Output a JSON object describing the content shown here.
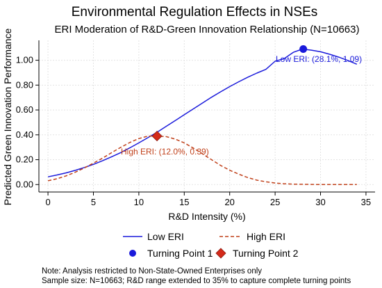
{
  "chart_data": {
    "type": "line",
    "title": "Environmental Regulation Effects in NSEs",
    "subtitle": "ERI Moderation of R&D-Green Innovation Relationship (N=10663)",
    "xlabel": "R&D Intensity (%)",
    "ylabel": "Predicted Green Innovation Performance",
    "xlim": [
      -1,
      36
    ],
    "ylim": [
      -0.06,
      1.16
    ],
    "xticks": [
      "0",
      "5",
      "10",
      "15",
      "20",
      "25",
      "30",
      "35"
    ],
    "yticks": [
      "0.00",
      "0.20",
      "0.40",
      "0.60",
      "0.80",
      "1.00"
    ],
    "grid": true,
    "legend_position": "bottom",
    "series": [
      {
        "name": "Low ERI",
        "style": "solid",
        "color": "#1a1adb",
        "x": [
          0,
          1,
          2,
          3,
          4,
          5,
          6,
          7,
          8,
          9,
          10,
          11,
          12,
          13,
          14,
          15,
          16,
          17,
          18,
          19,
          20,
          21,
          22,
          23,
          24,
          25,
          26,
          27,
          28,
          29,
          30,
          31,
          32,
          33,
          34
        ],
        "y": [
          0.062,
          0.077,
          0.094,
          0.114,
          0.137,
          0.162,
          0.191,
          0.223,
          0.257,
          0.295,
          0.335,
          0.377,
          0.421,
          0.467,
          0.514,
          0.562,
          0.609,
          0.656,
          0.702,
          0.746,
          0.788,
          0.827,
          0.864,
          0.897,
          0.927,
          0.992,
          1.013,
          1.064,
          1.09,
          1.081,
          1.068,
          1.048,
          1.025,
          0.998,
          0.968
        ]
      },
      {
        "name": "High ERI",
        "style": "dashed",
        "color": "#c0401a",
        "x": [
          0,
          1,
          2,
          3,
          4,
          5,
          6,
          7,
          8,
          9,
          10,
          11,
          12,
          13,
          14,
          15,
          16,
          17,
          18,
          19,
          20,
          21,
          22,
          23,
          24,
          25,
          26,
          27,
          28,
          29,
          30,
          31,
          32,
          33,
          34
        ],
        "y": [
          0.03,
          0.047,
          0.07,
          0.099,
          0.133,
          0.172,
          0.212,
          0.256,
          0.299,
          0.338,
          0.37,
          0.39,
          0.39,
          0.386,
          0.366,
          0.335,
          0.293,
          0.247,
          0.2,
          0.154,
          0.115,
          0.083,
          0.056,
          0.035,
          0.022,
          0.012,
          0.006,
          0.003,
          0.002,
          0.001,
          0.0,
          0.0,
          0.0,
          0.0,
          0.0
        ]
      }
    ],
    "turning_points": [
      {
        "name": "Turning Point 1",
        "x": 28.1,
        "y": 1.09,
        "marker": "circle",
        "color": "#1a1adb",
        "label": "Low ERI: (28.1%, 1.09)"
      },
      {
        "name": "Turning Point 2",
        "x": 12.0,
        "y": 0.39,
        "marker": "diamond",
        "color": "#d42a1a",
        "label": "High ERI: (12.0%, 0.39)"
      }
    ],
    "legend": [
      "Low ERI",
      "High ERI",
      "Turning Point 1",
      "Turning Point 2"
    ],
    "notes": [
      "Note: Analysis restricted to Non-State-Owned Enterprises only",
      "Sample size: N=10663; R&D range extended to 35% to capture complete turning points"
    ]
  }
}
